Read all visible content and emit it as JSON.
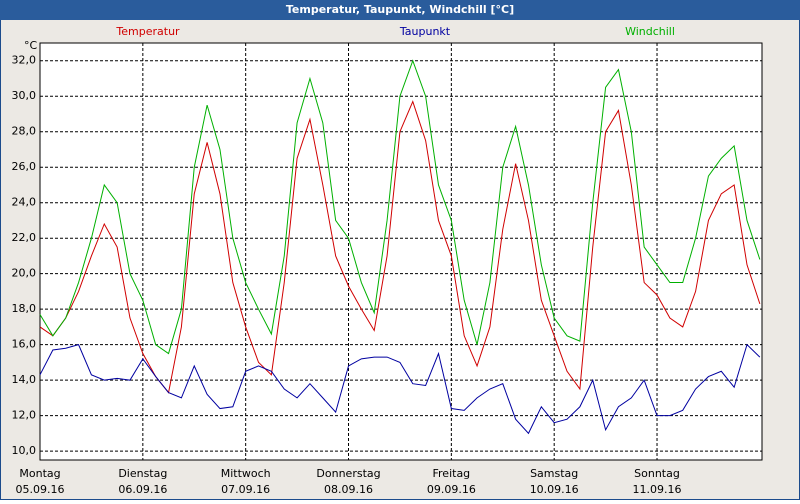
{
  "window_title": "Temperatur, Taupunkt, Windchill [°C]",
  "chart_data": {
    "type": "line",
    "ylabel": "°C",
    "x": [
      0,
      3,
      6,
      9,
      12,
      15,
      18,
      21,
      24,
      27,
      30,
      33,
      36,
      39,
      42,
      45,
      48,
      51,
      54,
      57,
      60,
      63,
      66,
      69,
      72,
      75,
      78,
      81,
      84,
      87,
      90,
      93,
      96,
      99,
      102,
      105,
      108,
      111,
      114,
      117,
      120,
      123,
      126,
      129,
      132,
      135,
      138,
      141,
      144,
      147,
      150,
      153,
      156,
      159,
      162,
      165,
      168
    ],
    "xlim": [
      0,
      168.5
    ],
    "xticks": [
      {
        "value": 0,
        "label": "Montag"
      },
      {
        "value": 24,
        "label": "Dienstag"
      },
      {
        "value": 48,
        "label": "Mittwoch"
      },
      {
        "value": 72,
        "label": "Donnerstag"
      },
      {
        "value": 96,
        "label": "Freitag"
      },
      {
        "value": 120,
        "label": "Samstag"
      },
      {
        "value": 144,
        "label": "Sonntag"
      }
    ],
    "xtick_dates": [
      "05.09.16",
      "06.09.16",
      "07.09.16",
      "08.09.16",
      "09.09.16",
      "10.09.16",
      "11.09.16"
    ],
    "ylim": [
      9.5,
      33
    ],
    "yticks": [
      {
        "value": 10,
        "label": "10,0"
      },
      {
        "value": 12,
        "label": "12,0"
      },
      {
        "value": 14,
        "label": "14,0"
      },
      {
        "value": 16,
        "label": "16,0"
      },
      {
        "value": 18,
        "label": "18,0"
      },
      {
        "value": 20,
        "label": "20,0"
      },
      {
        "value": 22,
        "label": "22,0"
      },
      {
        "value": 24,
        "label": "24,0"
      },
      {
        "value": 26,
        "label": "26,0"
      },
      {
        "value": 28,
        "label": "28,0"
      },
      {
        "value": 30,
        "label": "30,0"
      },
      {
        "value": 32,
        "label": "32,0"
      }
    ],
    "grid": true,
    "series": [
      {
        "name": "Temperatur",
        "color": "#d00000",
        "values": [
          17.0,
          16.5,
          17.5,
          19.0,
          21.0,
          22.8,
          21.5,
          17.5,
          15.5,
          14.2,
          13.3,
          17.0,
          24.5,
          27.4,
          24.5,
          19.5,
          17.0,
          15.0,
          14.3,
          19.5,
          26.5,
          28.7,
          25.0,
          21.0,
          19.3,
          18.0,
          16.8,
          21.0,
          28.0,
          29.7,
          27.5,
          23.0,
          21.0,
          16.5,
          14.8,
          17.0,
          22.5,
          26.2,
          23.0,
          18.5,
          16.5,
          14.5,
          13.5,
          21.5,
          28.0,
          29.2,
          25.0,
          19.5,
          18.8,
          17.5,
          17.0,
          19.0,
          23.0,
          24.5,
          25.0,
          20.5,
          18.3
        ]
      },
      {
        "name": "Taupunkt",
        "color": "#0000a0",
        "values": [
          14.3,
          15.7,
          15.8,
          16.0,
          14.3,
          14.0,
          14.1,
          14.0,
          15.2,
          14.2,
          13.3,
          13.0,
          14.8,
          13.2,
          12.4,
          12.5,
          14.5,
          14.8,
          14.5,
          13.5,
          13.0,
          13.8,
          13.0,
          12.2,
          14.8,
          15.2,
          15.3,
          15.3,
          15.0,
          13.8,
          13.7,
          15.5,
          12.4,
          12.3,
          13.0,
          13.5,
          13.8,
          11.8,
          11.0,
          12.5,
          11.6,
          11.8,
          12.5,
          14.0,
          11.2,
          12.5,
          13.0,
          14.0,
          12.0,
          12.0,
          12.3,
          13.5,
          14.2,
          14.5,
          13.6,
          16.0,
          15.3
        ]
      },
      {
        "name": "Windchill",
        "color": "#00b000",
        "values": [
          17.7,
          16.5,
          17.5,
          19.5,
          22.0,
          25.0,
          24.0,
          20.0,
          18.5,
          16.0,
          15.5,
          18.0,
          26.0,
          29.5,
          27.0,
          22.0,
          19.5,
          18.0,
          16.6,
          21.0,
          28.5,
          31.0,
          28.5,
          23.0,
          22.0,
          19.5,
          17.8,
          23.0,
          30.0,
          32.0,
          30.0,
          25.0,
          23.0,
          18.5,
          16.0,
          19.5,
          26.0,
          28.3,
          25.0,
          20.5,
          17.5,
          16.5,
          16.2,
          24.0,
          30.5,
          31.5,
          28.0,
          21.5,
          20.5,
          19.5,
          19.5,
          22.0,
          25.5,
          26.5,
          27.2,
          23.0,
          20.8
        ]
      }
    ]
  }
}
